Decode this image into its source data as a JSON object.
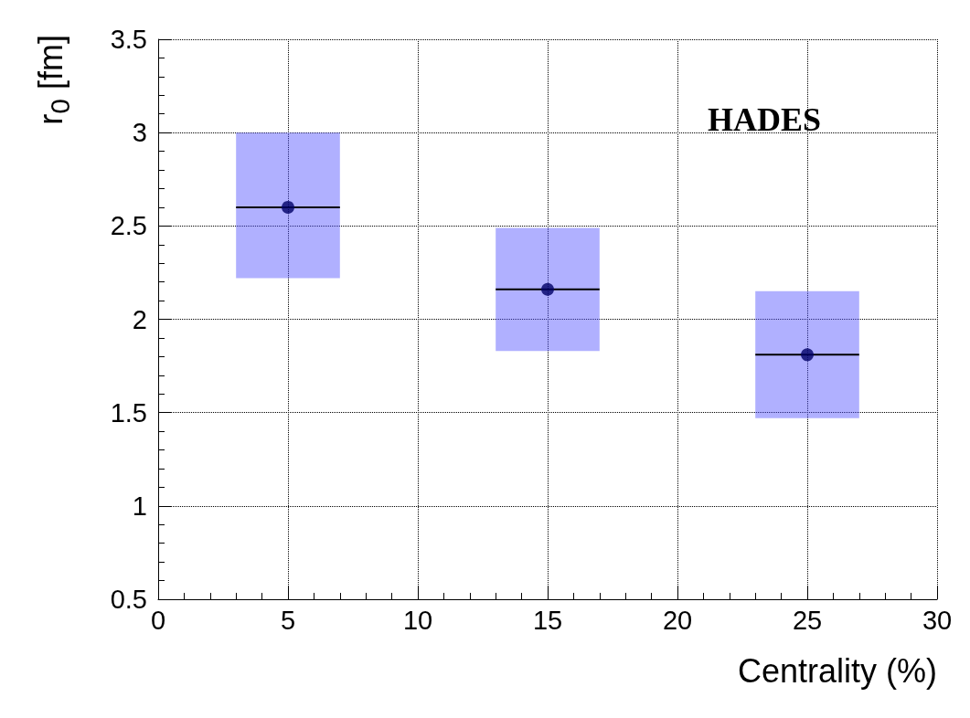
{
  "chart_data": {
    "type": "scatter",
    "xlabel": "Centrality (%)",
    "ylabel": "r$_{0}$ [fm]",
    "annotations": [
      "HADES"
    ],
    "x": [
      5,
      15,
      25
    ],
    "series": [
      {
        "type": "bar",
        "color": "#5050ff",
        "base": [
          2.22,
          1.83,
          1.47
        ],
        "values": [
          0.78,
          0.66,
          0.68
        ]
      },
      {
        "color": "#000066",
        "values": [
          2.6,
          2.16,
          1.81
        ],
        "xerrors": [
          2,
          2,
          2
        ]
      }
    ],
    "xlim": [
      0,
      30
    ],
    "xticks": [
      0,
      5,
      10,
      15,
      20,
      25,
      30
    ],
    "ylim": [
      0.5,
      3.5
    ],
    "yticks": [
      0.5,
      1,
      1.5,
      2,
      2.5,
      3,
      3.5
    ],
    "grid": true,
    "marker": "circle"
  }
}
